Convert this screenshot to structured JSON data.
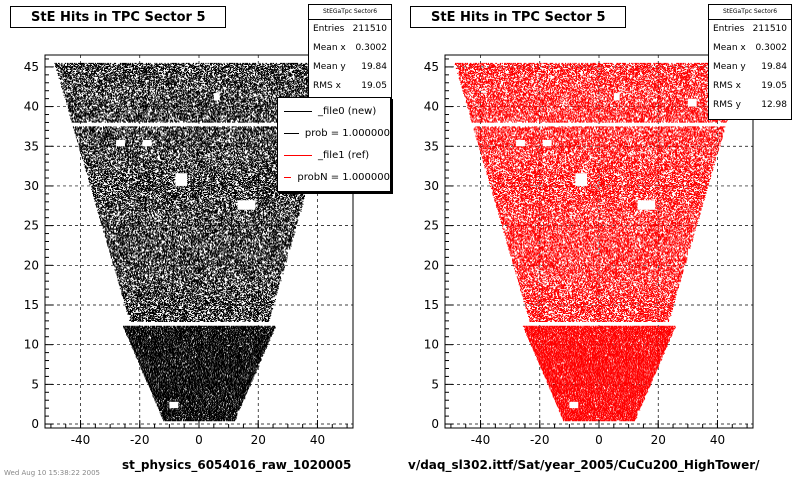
{
  "chart_data": [
    {
      "type": "scatter",
      "title": "StE Hits in TPC Sector 5",
      "marker_color": "#000000",
      "xlim": [
        -52,
        52
      ],
      "ylim": [
        -0.5,
        46.5
      ],
      "x_ticks": [
        -40,
        -20,
        0,
        20,
        40
      ],
      "y_ticks": [
        0,
        5,
        10,
        15,
        20,
        25,
        30,
        35,
        40,
        45
      ],
      "grid": true,
      "rows_per_pad": 47,
      "stats": {
        "header": "StEGaTpc Sector6",
        "entries_label": "Entries",
        "entries": "211510",
        "mean_x_label": "Mean x",
        "mean_x": "0.3002",
        "mean_y_label": "Mean y",
        "mean_y": "19.84",
        "rms_x_label": "RMS x",
        "rms_x": "19.05"
      },
      "legend": {
        "placement": "top-right",
        "entries": [
          {
            "label": "_file0 (new)",
            "color": "#000000"
          },
          {
            "label": "prob = 1.000000",
            "color": "#000000"
          },
          {
            "label": "_file1 (ref)",
            "color": "#ff0000"
          },
          {
            "label": "probN = 1.000000",
            "color": "#ff0000"
          }
        ]
      },
      "caption": "st_physics_6054016_raw_1020005"
    },
    {
      "type": "scatter",
      "title": "StE Hits in TPC Sector 5",
      "marker_color": "#ff0000",
      "xlim": [
        -52,
        52
      ],
      "ylim": [
        -0.5,
        46.5
      ],
      "x_ticks": [
        -40,
        -20,
        0,
        20,
        40
      ],
      "y_ticks": [
        0,
        5,
        10,
        15,
        20,
        25,
        30,
        35,
        40,
        45
      ],
      "grid": true,
      "stats": {
        "header": "StEGaTpc Sector6",
        "entries_label": "Entries",
        "entries": "211510",
        "mean_x_label": "Mean x",
        "mean_x": "0.3002",
        "mean_y_label": "Mean y",
        "mean_y": "19.84",
        "rms_x_label": "RMS x",
        "rms_x": "19.05",
        "rms_y_label": "RMS y",
        "rms_y": "12.98"
      },
      "caption": "v/daq_sl302.ittf/Sat/year_2005/CuCu200_HighTower/"
    }
  ],
  "footer_date": "Wed Aug 10 15:38:22 2005"
}
